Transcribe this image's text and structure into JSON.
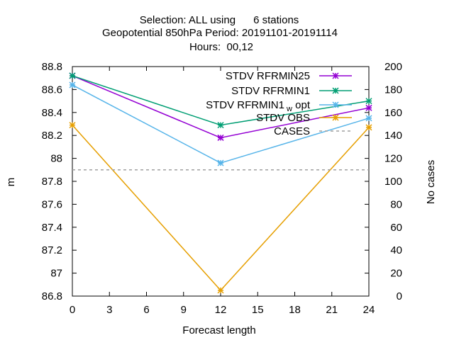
{
  "chart_data": {
    "type": "line",
    "title": {
      "line1": "Selection: ALL using      6 stations",
      "line2": "Geopotential 850hPa   Period: 20191101-20191114",
      "line3": "Hours:  00,12"
    },
    "xlabel": "Forecast length",
    "ylabel": "m",
    "y2label": "No cases",
    "xlim": [
      0,
      24
    ],
    "ylim": [
      86.8,
      88.8
    ],
    "y2lim": [
      0,
      200
    ],
    "xticks": [
      0,
      3,
      6,
      9,
      12,
      15,
      18,
      21,
      24
    ],
    "yticks": [
      "86.8",
      "87",
      "87.2",
      "87.4",
      "87.6",
      "87.8",
      "88",
      "88.2",
      "88.4",
      "88.6",
      "88.8"
    ],
    "y2ticks": [
      0,
      20,
      40,
      60,
      80,
      100,
      120,
      140,
      160,
      180,
      200
    ],
    "grid": false,
    "legend_position": "top-right",
    "series": [
      {
        "name": "STDV RFRMIN25",
        "color": "#9400d3",
        "style": "solid",
        "marker": "x-star",
        "x": [
          0,
          12,
          24
        ],
        "y": [
          88.72,
          88.18,
          88.44
        ]
      },
      {
        "name": "STDV RFRMIN1",
        "color": "#009e73",
        "style": "solid",
        "marker": "x-star",
        "x": [
          0,
          12,
          24
        ],
        "y": [
          88.72,
          88.29,
          88.5
        ]
      },
      {
        "name": "STDV RFRMIN1",
        "name_subscript": "w",
        "name_suffix": "opt",
        "color": "#56b4e9",
        "style": "solid",
        "marker": "x-star",
        "x": [
          0,
          12,
          24
        ],
        "y": [
          88.64,
          87.96,
          88.35
        ]
      },
      {
        "name": "STDV OBS",
        "color": "#e69f00",
        "style": "solid",
        "marker": "x-star",
        "x": [
          0,
          12,
          24
        ],
        "y": [
          88.29,
          86.85,
          88.27
        ]
      },
      {
        "name": "CASES",
        "color": "#a0a0a0",
        "style": "dashed",
        "axis": "y2",
        "x": [
          0,
          24
        ],
        "y": [
          110,
          110
        ]
      }
    ]
  }
}
